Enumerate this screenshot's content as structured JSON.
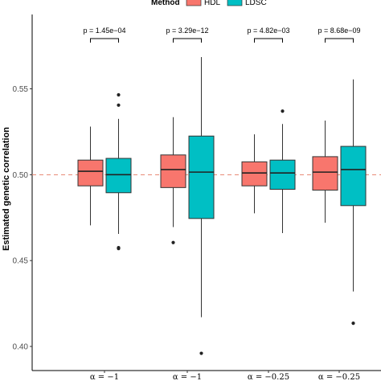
{
  "chart_data": {
    "type": "box",
    "ylabel": "Estimated genetic correlation",
    "ylim": [
      0.395,
      0.575
    ],
    "yticks": [
      0.4,
      0.45,
      0.5,
      0.55
    ],
    "ytick_labels": [
      "0.40",
      "0.45",
      "0.50",
      "0.55"
    ],
    "reference_line": {
      "y": 0.5,
      "style": "dashed",
      "color": "#E8836F"
    },
    "legend": {
      "title": "Method",
      "position": "top",
      "entries": [
        {
          "label": "HDL",
          "color": "#F8766D"
        },
        {
          "label": "LDSC",
          "color": "#00BFC4"
        }
      ]
    },
    "categories": [
      "α = −1",
      "α = −1",
      "α = −0.25",
      "α = −0.25"
    ],
    "p_values": [
      "p = 1.45e−04",
      "p = 3.29e−12",
      "p = 4.82e−03",
      "p = 8.68e−09"
    ],
    "series": [
      {
        "name": "HDL",
        "color": "#F8766D",
        "boxes": [
          {
            "min": 0.4705,
            "q1": 0.4935,
            "median": 0.502,
            "q3": 0.5085,
            "max": 0.528,
            "outliers": []
          },
          {
            "min": 0.4695,
            "q1": 0.4925,
            "median": 0.503,
            "q3": 0.5115,
            "max": 0.5335,
            "outliers": [
              0.4605
            ]
          },
          {
            "min": 0.4775,
            "q1": 0.4935,
            "median": 0.501,
            "q3": 0.5075,
            "max": 0.5235,
            "outliers": []
          },
          {
            "min": 0.472,
            "q1": 0.491,
            "median": 0.5015,
            "q3": 0.5105,
            "max": 0.5315,
            "outliers": []
          }
        ]
      },
      {
        "name": "LDSC",
        "color": "#00BFC4",
        "boxes": [
          {
            "min": 0.4655,
            "q1": 0.4895,
            "median": 0.5,
            "q3": 0.5095,
            "max": 0.5325,
            "outliers": [
              0.4575,
              0.457,
              0.5405,
              0.5465
            ]
          },
          {
            "min": 0.417,
            "q1": 0.4745,
            "median": 0.5015,
            "q3": 0.5225,
            "max": 0.5685,
            "outliers": [
              0.396
            ]
          },
          {
            "min": 0.466,
            "q1": 0.4915,
            "median": 0.501,
            "q3": 0.5085,
            "max": 0.5295,
            "outliers": [
              0.537
            ]
          },
          {
            "min": 0.432,
            "q1": 0.482,
            "median": 0.503,
            "q3": 0.5165,
            "max": 0.5555,
            "outliers": [
              0.4135
            ]
          }
        ]
      }
    ]
  }
}
